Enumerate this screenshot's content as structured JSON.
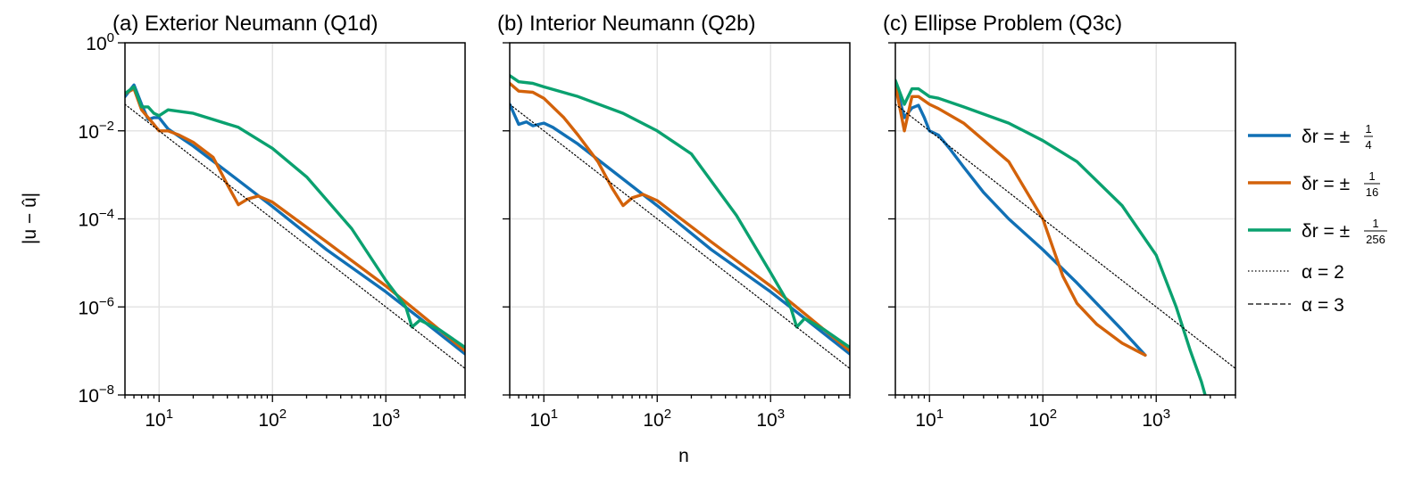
{
  "figure": {
    "ylabel": "|u − û|",
    "xlabel": "n"
  },
  "legend": {
    "entries": [
      {
        "prefix": "δr = ±",
        "num": "1",
        "den": "4",
        "color": "#1170b5",
        "style": "solid"
      },
      {
        "prefix": "δr = ±",
        "num": "1",
        "den": "16",
        "color": "#d3620a",
        "style": "solid"
      },
      {
        "prefix": "δr = ±",
        "num": "1",
        "den": "256",
        "color": "#0aa16f",
        "style": "solid"
      },
      {
        "text": "α = 2",
        "color": "#000000",
        "style": "dotted"
      },
      {
        "text": "α = 3",
        "color": "#000000",
        "style": "dashed"
      }
    ]
  },
  "chart_data": [
    {
      "type": "line",
      "title": "(a) Exterior Neumann (Q1d)",
      "xscale": "log",
      "yscale": "log",
      "xlim": [
        5,
        5000
      ],
      "ylim": [
        1e-08,
        1
      ],
      "xticks": [
        "10^1",
        "10^2",
        "10^3"
      ],
      "yticks": [
        "10^0",
        "10^-2",
        "10^-4",
        "10^-6",
        "10^-8"
      ],
      "grid": true,
      "series": [
        {
          "name": "δr = ±1/4",
          "color": "#1170b5",
          "points": [
            [
              5,
              0.06
            ],
            [
              6,
              0.11
            ],
            [
              7,
              0.04
            ],
            [
              8,
              0.018
            ],
            [
              9,
              0.02
            ],
            [
              10,
              0.02
            ],
            [
              12,
              0.011
            ],
            [
              20,
              0.0045
            ],
            [
              50,
              0.00075
            ],
            [
              100,
              0.00019
            ],
            [
              300,
              2e-05
            ],
            [
              1000,
              2.2e-06
            ],
            [
              2000,
              5.5e-07
            ],
            [
              5000,
              8.5e-08
            ]
          ]
        },
        {
          "name": "δr = ±1/16",
          "color": "#d3620a",
          "points": [
            [
              5,
              0.07
            ],
            [
              6,
              0.09
            ],
            [
              7,
              0.03
            ],
            [
              8,
              0.02
            ],
            [
              9,
              0.014
            ],
            [
              10,
              0.01
            ],
            [
              12,
              0.01
            ],
            [
              15,
              0.008
            ],
            [
              20,
              0.0055
            ],
            [
              30,
              0.0025
            ],
            [
              40,
              0.0006
            ],
            [
              50,
              0.00021
            ],
            [
              60,
              0.00028
            ],
            [
              75,
              0.00033
            ],
            [
              100,
              0.00024
            ],
            [
              300,
              3e-05
            ],
            [
              1000,
              3e-06
            ],
            [
              2000,
              7e-07
            ],
            [
              5000,
              1e-07
            ]
          ]
        },
        {
          "name": "δr = ±1/256",
          "color": "#0aa16f",
          "points": [
            [
              5,
              0.07
            ],
            [
              6,
              0.1
            ],
            [
              7,
              0.035
            ],
            [
              8,
              0.035
            ],
            [
              9,
              0.025
            ],
            [
              10,
              0.022
            ],
            [
              12,
              0.03
            ],
            [
              20,
              0.025
            ],
            [
              50,
              0.012
            ],
            [
              100,
              0.004
            ],
            [
              200,
              0.0009
            ],
            [
              500,
              6e-05
            ],
            [
              1000,
              4e-06
            ],
            [
              1500,
              1e-06
            ],
            [
              1700,
              3.5e-07
            ],
            [
              2000,
              5e-07
            ],
            [
              3000,
              3e-07
            ],
            [
              5000,
              1.2e-07
            ]
          ]
        },
        {
          "name": "α = 2",
          "color": "#000000",
          "dash": "dotted",
          "points": [
            [
              5,
              0.04
            ],
            [
              5000,
              4e-08
            ]
          ]
        }
      ]
    },
    {
      "type": "line",
      "title": "(b) Interior Neumann (Q2b)",
      "xscale": "log",
      "yscale": "log",
      "xlim": [
        5,
        5000
      ],
      "ylim": [
        1e-08,
        1
      ],
      "xticks": [
        "10^1",
        "10^2",
        "10^3"
      ],
      "yticks": [
        "10^0",
        "10^-2",
        "10^-4",
        "10^-6",
        "10^-8"
      ],
      "grid": true,
      "series": [
        {
          "name": "δr = ±1/4",
          "color": "#1170b5",
          "points": [
            [
              5,
              0.04
            ],
            [
              6,
              0.014
            ],
            [
              7,
              0.016
            ],
            [
              8,
              0.013
            ],
            [
              9,
              0.014
            ],
            [
              10,
              0.015
            ],
            [
              12,
              0.012
            ],
            [
              20,
              0.005
            ],
            [
              50,
              0.0008
            ],
            [
              100,
              0.0002
            ],
            [
              300,
              2e-05
            ],
            [
              1000,
              2.2e-06
            ],
            [
              2000,
              5.5e-07
            ],
            [
              5000,
              8.5e-08
            ]
          ]
        },
        {
          "name": "δr = ±1/16",
          "color": "#d3620a",
          "points": [
            [
              5,
              0.12
            ],
            [
              6,
              0.08
            ],
            [
              8,
              0.075
            ],
            [
              10,
              0.055
            ],
            [
              15,
              0.02
            ],
            [
              20,
              0.008
            ],
            [
              30,
              0.002
            ],
            [
              40,
              0.0005
            ],
            [
              50,
              0.0002
            ],
            [
              60,
              0.0003
            ],
            [
              75,
              0.00036
            ],
            [
              100,
              0.00026
            ],
            [
              300,
              3e-05
            ],
            [
              1000,
              3e-06
            ],
            [
              2000,
              7e-07
            ],
            [
              5000,
              1e-07
            ]
          ]
        },
        {
          "name": "δr = ±1/256",
          "color": "#0aa16f",
          "points": [
            [
              5,
              0.18
            ],
            [
              6,
              0.13
            ],
            [
              8,
              0.12
            ],
            [
              10,
              0.1
            ],
            [
              20,
              0.06
            ],
            [
              50,
              0.025
            ],
            [
              100,
              0.01
            ],
            [
              200,
              0.003
            ],
            [
              500,
              0.00012
            ],
            [
              1000,
              6e-06
            ],
            [
              1500,
              1e-06
            ],
            [
              1700,
              3.5e-07
            ],
            [
              2000,
              5.5e-07
            ],
            [
              3000,
              3e-07
            ],
            [
              5000,
              1.2e-07
            ]
          ]
        },
        {
          "name": "α = 2",
          "color": "#000000",
          "dash": "dotted",
          "points": [
            [
              5,
              0.04
            ],
            [
              5000,
              4e-08
            ]
          ]
        }
      ]
    },
    {
      "type": "line",
      "title": "(c) Ellipse Problem (Q3c)",
      "xscale": "log",
      "yscale": "log",
      "xlim": [
        5,
        5000
      ],
      "ylim": [
        1e-08,
        1
      ],
      "xticks": [
        "10^1",
        "10^2",
        "10^3"
      ],
      "yticks": [
        "10^0",
        "10^-2",
        "10^-4",
        "10^-6",
        "10^-8"
      ],
      "grid": true,
      "series": [
        {
          "name": "δr = ±1/4",
          "color": "#1170b5",
          "points": [
            [
              5,
              0.12
            ],
            [
              6,
              0.02
            ],
            [
              7,
              0.033
            ],
            [
              8,
              0.038
            ],
            [
              9,
              0.02
            ],
            [
              10,
              0.01
            ],
            [
              12,
              0.008
            ],
            [
              15,
              0.004
            ],
            [
              20,
              0.0015
            ],
            [
              30,
              0.0004
            ],
            [
              50,
              0.0001
            ],
            [
              100,
              2e-05
            ],
            [
              200,
              3.5e-06
            ],
            [
              500,
              3e-07
            ],
            [
              800,
              8e-08
            ]
          ]
        },
        {
          "name": "δr = ±1/16",
          "color": "#d3620a",
          "points": [
            [
              5,
              0.11
            ],
            [
              6,
              0.01
            ],
            [
              7,
              0.06
            ],
            [
              8,
              0.06
            ],
            [
              10,
              0.04
            ],
            [
              12,
              0.032
            ],
            [
              20,
              0.015
            ],
            [
              50,
              0.002
            ],
            [
              100,
              0.0001
            ],
            [
              150,
              5e-06
            ],
            [
              200,
              1.2e-06
            ],
            [
              300,
              4e-07
            ],
            [
              500,
              1.5e-07
            ],
            [
              800,
              8e-08
            ]
          ]
        },
        {
          "name": "δr = ±1/256",
          "color": "#0aa16f",
          "points": [
            [
              5,
              0.14
            ],
            [
              6,
              0.04
            ],
            [
              7,
              0.09
            ],
            [
              8,
              0.09
            ],
            [
              10,
              0.06
            ],
            [
              12,
              0.055
            ],
            [
              20,
              0.035
            ],
            [
              50,
              0.015
            ],
            [
              100,
              0.006
            ],
            [
              200,
              0.002
            ],
            [
              500,
              0.0002
            ],
            [
              1000,
              1.5e-05
            ],
            [
              1500,
              1e-06
            ],
            [
              2000,
              1e-07
            ],
            [
              2500,
              2e-08
            ],
            [
              2700,
              1e-08
            ]
          ]
        },
        {
          "name": "α = 2",
          "color": "#000000",
          "dash": "dotted",
          "points": [
            [
              5,
              0.04
            ],
            [
              5000,
              4e-08
            ]
          ]
        }
      ]
    }
  ]
}
